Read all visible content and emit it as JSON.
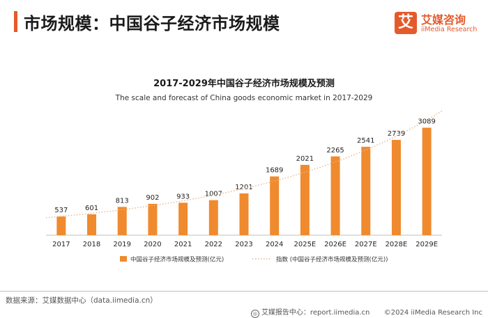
{
  "header": {
    "title": "市场规模：中国谷子经济市场规模"
  },
  "brand": {
    "logo_char": "艾",
    "name_cn": "艾媒咨询",
    "name_en": "iiMedia Research",
    "color": "#e55a2b"
  },
  "chart_data": {
    "type": "bar",
    "title": "2017-2029年中国谷子经济市场规模及预测",
    "subtitle": "The scale and forecast of China goods economic market in 2017-2029",
    "categories": [
      "2017",
      "2018",
      "2019",
      "2020",
      "2021",
      "2022",
      "2023",
      "2024",
      "2025E",
      "2026E",
      "2027E",
      "2028E",
      "2029E"
    ],
    "series": [
      {
        "name": "中国谷子经济市场规模及预测(亿元)",
        "kind": "bar",
        "color": "#f08a2e",
        "values": [
          537,
          601,
          813,
          902,
          933,
          1007,
          1201,
          1689,
          2021,
          2265,
          2541,
          2739,
          3089
        ]
      },
      {
        "name": "指数 (中国谷子经济市场规模及预测(亿元))",
        "kind": "trendline",
        "color": "#e8b48a"
      }
    ],
    "ylim": [
      0,
      3300
    ],
    "xlabel": "",
    "ylabel": "",
    "legend_position": "bottom"
  },
  "footer": {
    "source": "数据来源：艾媒数据中心（data.iimedia.cn）",
    "report_center": "艾媒报告中心：report.iimedia.cn",
    "copyright": "©2024  iiMedia Research Inc"
  }
}
